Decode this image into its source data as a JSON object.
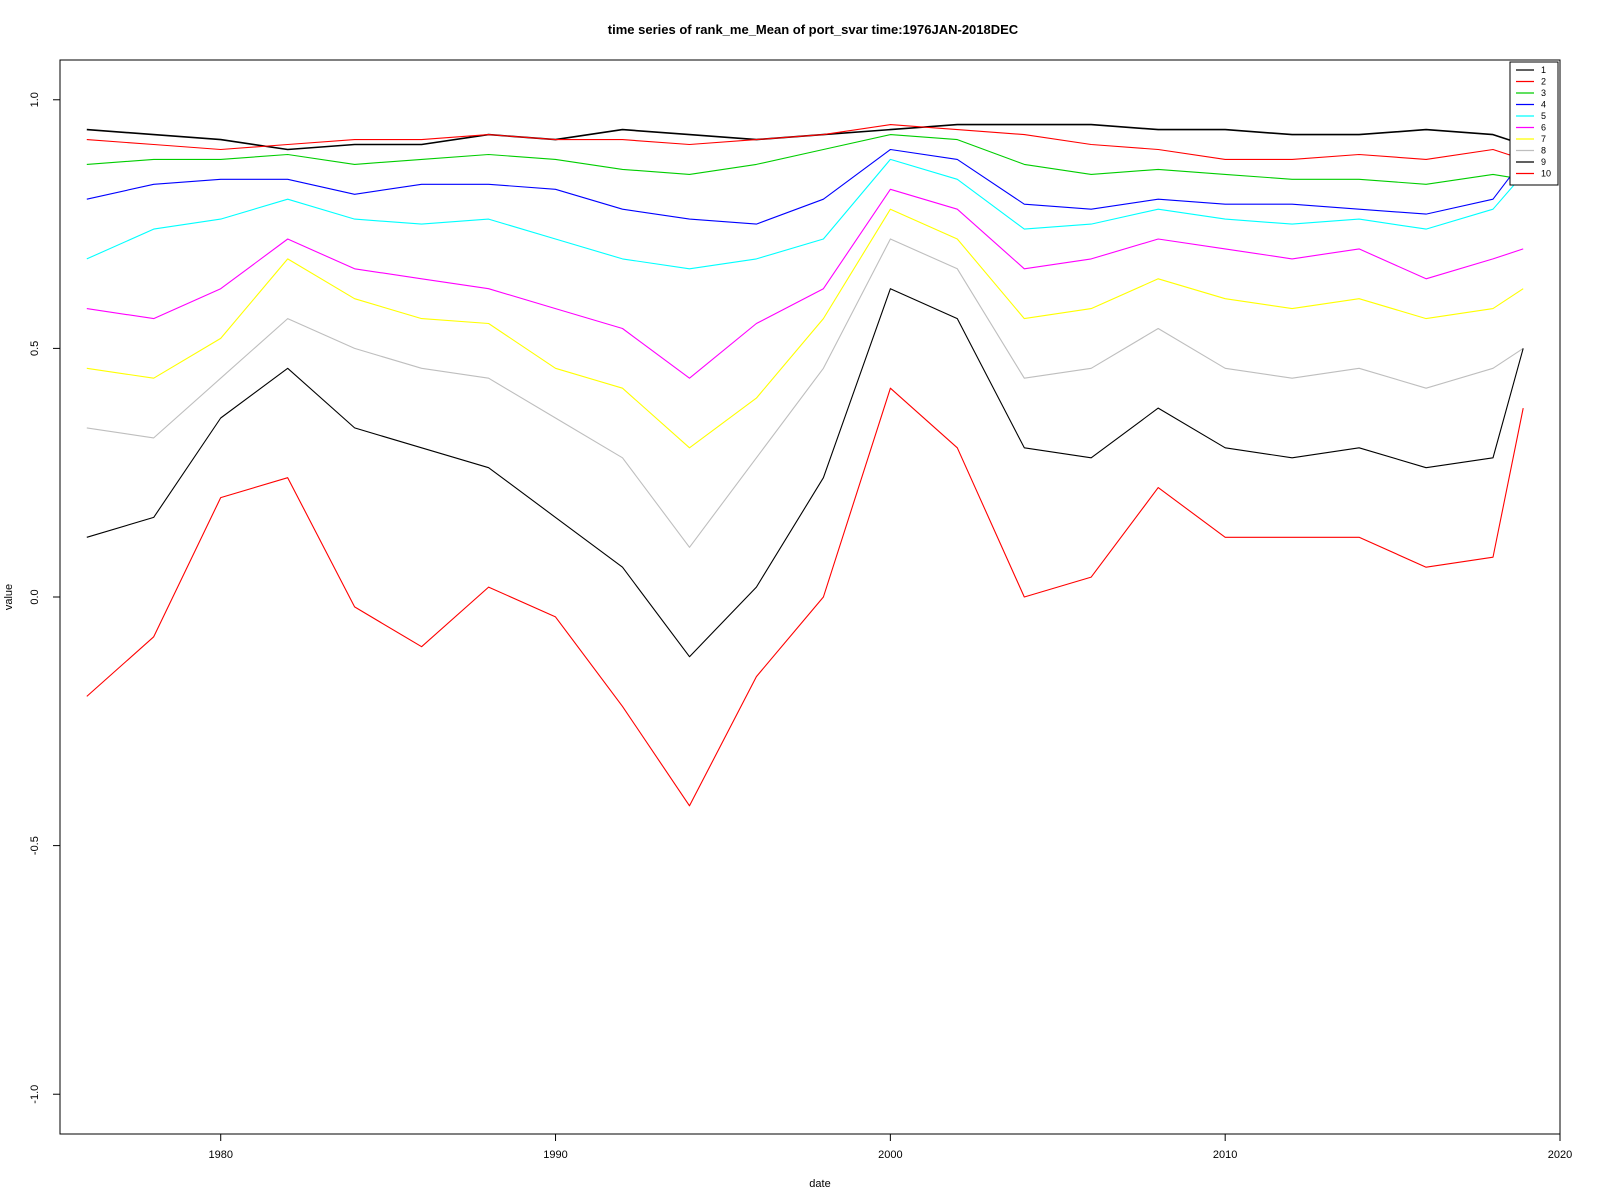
{
  "chart_data": {
    "type": "line",
    "title": "time series of rank_me_Mean of port_svar time:1976JAN-2018DEC",
    "xlabel": "date",
    "ylabel": "value",
    "xlim": [
      1975.2,
      2020.0
    ],
    "ylim": [
      -1.08,
      1.08
    ],
    "x_ticks": [
      1980,
      1990,
      2000,
      2010,
      2020
    ],
    "y_ticks": [
      -1.0,
      -0.5,
      0.0,
      0.5,
      1.0
    ],
    "x_tick_labels": [
      "1980",
      "1990",
      "2000",
      "2010",
      "2020"
    ],
    "y_tick_labels": [
      "-1.0",
      "-0.5",
      "0.0",
      "0.5",
      "1.0"
    ],
    "legend_position": "top-right",
    "grid": false,
    "series": [
      {
        "name": "1",
        "color": "#000000",
        "x": [
          1976.0,
          1978.0,
          1980.0,
          1982.0,
          1984.0,
          1986.0,
          1988.0,
          1990.0,
          1992.0,
          1994.0,
          1996.0,
          1998.0,
          2000.0,
          2002.0,
          2004.0,
          2006.0,
          2008.0,
          2010.0,
          2012.0,
          2014.0,
          2016.0,
          2018.0,
          2018.9
        ],
        "values": [
          0.94,
          0.93,
          0.92,
          0.9,
          0.91,
          0.91,
          0.93,
          0.92,
          0.94,
          0.93,
          0.92,
          0.93,
          0.94,
          0.95,
          0.95,
          0.95,
          0.94,
          0.94,
          0.93,
          0.93,
          0.94,
          0.93,
          0.91
        ]
      },
      {
        "name": "2",
        "color": "#ff0000",
        "x": [
          1976.0,
          1978.0,
          1980.0,
          1982.0,
          1984.0,
          1986.0,
          1988.0,
          1990.0,
          1992.0,
          1994.0,
          1996.0,
          1998.0,
          2000.0,
          2002.0,
          2004.0,
          2006.0,
          2008.0,
          2010.0,
          2012.0,
          2014.0,
          2016.0,
          2018.0,
          2018.9
        ],
        "values": [
          0.92,
          0.91,
          0.9,
          0.91,
          0.92,
          0.92,
          0.93,
          0.92,
          0.92,
          0.91,
          0.92,
          0.93,
          0.95,
          0.94,
          0.93,
          0.91,
          0.9,
          0.88,
          0.88,
          0.89,
          0.88,
          0.9,
          0.88
        ]
      },
      {
        "name": "3",
        "color": "#00cd00",
        "x": [
          1976.0,
          1978.0,
          1980.0,
          1982.0,
          1984.0,
          1986.0,
          1988.0,
          1990.0,
          1992.0,
          1994.0,
          1996.0,
          1998.0,
          2000.0,
          2002.0,
          2004.0,
          2006.0,
          2008.0,
          2010.0,
          2012.0,
          2014.0,
          2016.0,
          2018.0,
          2018.9
        ],
        "values": [
          0.87,
          0.88,
          0.88,
          0.89,
          0.87,
          0.88,
          0.89,
          0.88,
          0.86,
          0.85,
          0.87,
          0.9,
          0.93,
          0.92,
          0.87,
          0.85,
          0.86,
          0.85,
          0.84,
          0.84,
          0.83,
          0.85,
          0.84
        ]
      },
      {
        "name": "4",
        "color": "#0000ff",
        "x": [
          1976.0,
          1978.0,
          1980.0,
          1982.0,
          1984.0,
          1986.0,
          1988.0,
          1990.0,
          1992.0,
          1994.0,
          1996.0,
          1998.0,
          2000.0,
          2002.0,
          2004.0,
          2006.0,
          2008.0,
          2010.0,
          2012.0,
          2014.0,
          2016.0,
          2018.0,
          2018.9
        ],
        "values": [
          0.8,
          0.83,
          0.84,
          0.84,
          0.81,
          0.83,
          0.83,
          0.82,
          0.78,
          0.76,
          0.75,
          0.8,
          0.9,
          0.88,
          0.79,
          0.78,
          0.8,
          0.79,
          0.79,
          0.78,
          0.77,
          0.8,
          0.88
        ]
      },
      {
        "name": "5",
        "color": "#00ffff",
        "x": [
          1976.0,
          1978.0,
          1980.0,
          1982.0,
          1984.0,
          1986.0,
          1988.0,
          1990.0,
          1992.0,
          1994.0,
          1996.0,
          1998.0,
          2000.0,
          2002.0,
          2004.0,
          2006.0,
          2008.0,
          2010.0,
          2012.0,
          2014.0,
          2016.0,
          2018.0,
          2018.9
        ],
        "values": [
          0.68,
          0.74,
          0.76,
          0.8,
          0.76,
          0.75,
          0.76,
          0.72,
          0.68,
          0.66,
          0.68,
          0.72,
          0.88,
          0.84,
          0.74,
          0.75,
          0.78,
          0.76,
          0.75,
          0.76,
          0.74,
          0.78,
          0.85
        ]
      },
      {
        "name": "6",
        "color": "#ff00ff",
        "x": [
          1976.0,
          1978.0,
          1980.0,
          1982.0,
          1984.0,
          1986.0,
          1988.0,
          1990.0,
          1992.0,
          1994.0,
          1996.0,
          1998.0,
          2000.0,
          2002.0,
          2004.0,
          2006.0,
          2008.0,
          2010.0,
          2012.0,
          2014.0,
          2016.0,
          2018.0,
          2018.9
        ],
        "values": [
          0.58,
          0.56,
          0.62,
          0.72,
          0.66,
          0.64,
          0.62,
          0.58,
          0.54,
          0.44,
          0.55,
          0.62,
          0.82,
          0.78,
          0.66,
          0.68,
          0.72,
          0.7,
          0.68,
          0.7,
          0.64,
          0.68,
          0.7
        ]
      },
      {
        "name": "7",
        "color": "#ffff00",
        "x": [
          1976.0,
          1978.0,
          1980.0,
          1982.0,
          1984.0,
          1986.0,
          1988.0,
          1990.0,
          1992.0,
          1994.0,
          1996.0,
          1998.0,
          2000.0,
          2002.0,
          2004.0,
          2006.0,
          2008.0,
          2010.0,
          2012.0,
          2014.0,
          2016.0,
          2018.0,
          2018.9
        ],
        "values": [
          0.46,
          0.44,
          0.52,
          0.68,
          0.6,
          0.56,
          0.55,
          0.46,
          0.42,
          0.3,
          0.4,
          0.56,
          0.78,
          0.72,
          0.56,
          0.58,
          0.64,
          0.6,
          0.58,
          0.6,
          0.56,
          0.58,
          0.62
        ]
      },
      {
        "name": "8",
        "color": "#bebebe",
        "x": [
          1976.0,
          1978.0,
          1980.0,
          1982.0,
          1984.0,
          1986.0,
          1988.0,
          1990.0,
          1992.0,
          1994.0,
          1996.0,
          1998.0,
          2000.0,
          2002.0,
          2004.0,
          2006.0,
          2008.0,
          2010.0,
          2012.0,
          2014.0,
          2016.0,
          2018.0,
          2018.9
        ],
        "values": [
          0.34,
          0.32,
          0.44,
          0.56,
          0.5,
          0.46,
          0.44,
          0.36,
          0.28,
          0.1,
          0.28,
          0.46,
          0.72,
          0.66,
          0.44,
          0.46,
          0.54,
          0.46,
          0.44,
          0.46,
          0.42,
          0.46,
          0.5
        ]
      },
      {
        "name": "9",
        "color": "#000000",
        "x": [
          1976.0,
          1978.0,
          1980.0,
          1982.0,
          1984.0,
          1986.0,
          1988.0,
          1990.0,
          1992.0,
          1994.0,
          1996.0,
          1998.0,
          2000.0,
          2002.0,
          2004.0,
          2006.0,
          2008.0,
          2010.0,
          2012.0,
          2014.0,
          2016.0,
          2018.0,
          2018.9
        ],
        "values": [
          0.12,
          0.16,
          0.36,
          0.46,
          0.34,
          0.3,
          0.26,
          0.16,
          0.06,
          -0.12,
          0.02,
          0.24,
          0.62,
          0.56,
          0.3,
          0.28,
          0.38,
          0.3,
          0.28,
          0.3,
          0.26,
          0.28,
          0.5
        ]
      },
      {
        "name": "10",
        "color": "#ff0000",
        "x": [
          1976.0,
          1978.0,
          1980.0,
          1982.0,
          1984.0,
          1986.0,
          1988.0,
          1990.0,
          1992.0,
          1994.0,
          1996.0,
          1998.0,
          2000.0,
          2002.0,
          2004.0,
          2006.0,
          2008.0,
          2010.0,
          2012.0,
          2014.0,
          2016.0,
          2018.0,
          2018.9
        ],
        "values": [
          -0.2,
          -0.08,
          0.2,
          0.24,
          -0.02,
          -0.1,
          0.02,
          -0.04,
          -0.22,
          -0.42,
          -0.16,
          0.0,
          0.42,
          0.3,
          0.0,
          0.04,
          0.22,
          0.12,
          0.12,
          0.12,
          0.06,
          0.08,
          0.38
        ]
      }
    ]
  }
}
